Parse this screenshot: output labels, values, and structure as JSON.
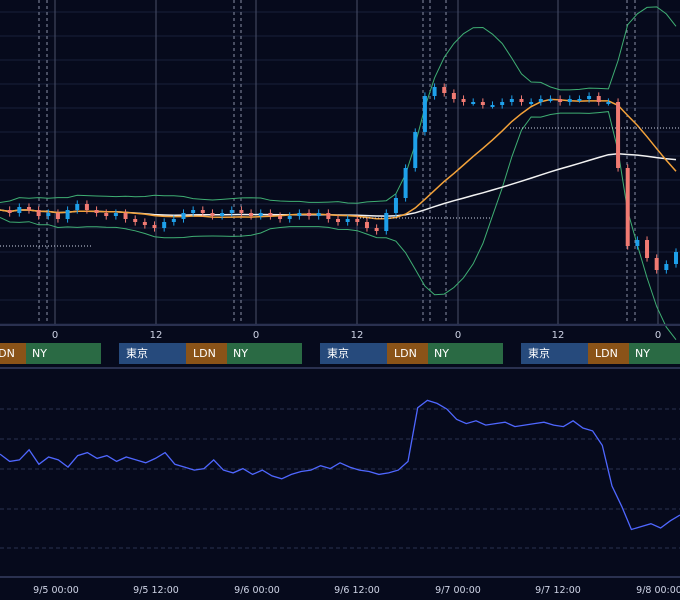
{
  "chart_data": [
    {
      "type": "candlestick",
      "title": "",
      "description_overlays": [
        "bollinger-upper",
        "bollinger-lower",
        "moving-average-orange",
        "moving-average-white"
      ],
      "grid": true,
      "colors": {
        "background": "#060a1c",
        "up": "#1ea0ea",
        "down": "#f07a72",
        "ma_orange": "#f3a23a",
        "ma_white": "#f2f2f2",
        "bollinger": "#3fae73",
        "grid": "#18203a",
        "session_line": "#8a90a6"
      },
      "x_tick_labels": [
        "0",
        "12",
        "0",
        "12",
        "0",
        "12",
        "0"
      ],
      "session_labels": [
        {
          "tokyo": "",
          "london": "LDN",
          "newyork": "NY"
        },
        {
          "tokyo": "東京",
          "london": "LDN",
          "newyork": "NY"
        },
        {
          "tokyo": "東京",
          "london": "LDN",
          "newyork": "NY"
        },
        {
          "tokyo": "東京",
          "london": "LDN",
          "newyork": "NY"
        }
      ],
      "session_colors": {
        "tokyo": "#264a7c",
        "london": "#8a5318",
        "newyork": "#2a6a44"
      },
      "price_index": [
        34,
        33,
        35,
        34,
        32,
        33,
        31,
        34,
        36,
        34,
        33,
        32,
        33,
        31,
        30,
        29,
        28,
        30,
        31,
        33,
        34,
        33,
        32,
        33,
        34,
        33,
        32,
        33,
        32,
        31,
        32,
        33,
        32,
        33,
        31,
        30,
        31,
        30,
        28,
        27,
        33,
        38,
        48,
        60,
        72,
        75,
        73,
        71,
        70,
        70,
        69,
        69,
        70,
        71,
        70,
        70,
        71,
        71,
        70,
        71,
        71,
        72,
        70,
        70,
        48,
        22,
        24,
        18,
        14,
        16,
        20
      ]
    },
    {
      "type": "line",
      "title": "",
      "grid": true,
      "color": "#4f67ff",
      "x_tick_labels": [
        "9/5 00:00",
        "9/5 12:00",
        "9/6 00:00",
        "9/6 12:00",
        "9/7 00:00",
        "9/7 12:00",
        "9/8 00:00"
      ],
      "values": [
        42,
        37,
        38,
        45,
        35,
        40,
        38,
        33,
        41,
        43,
        39,
        41,
        37,
        40,
        38,
        36,
        39,
        43,
        35,
        33,
        31,
        32,
        38,
        31,
        29,
        32,
        28,
        31,
        27,
        25,
        28,
        30,
        31,
        34,
        32,
        36,
        33,
        31,
        30,
        28,
        29,
        31,
        37,
        74,
        79,
        77,
        73,
        66,
        63,
        65,
        62,
        63,
        64,
        61,
        62,
        63,
        64,
        62,
        61,
        65,
        60,
        58,
        48,
        20,
        6,
        -10,
        -8,
        -6,
        -9,
        -4,
        0
      ]
    }
  ]
}
